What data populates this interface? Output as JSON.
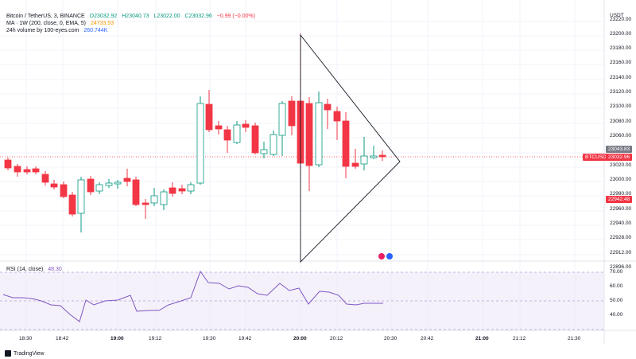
{
  "legend": {
    "symbol": "Bitcoin / TetherUS, 3, BINANCE",
    "open": "O23032.92",
    "high": "H23040.73",
    "low": "L23022.00",
    "close": "C23032.96",
    "change": "−0.99 (−0.00%)",
    "ma_label": "MA · 1W (200, close, 0, EMA, 5)",
    "ma_value": "24733.53",
    "volume_label": "24h volume by 100-eyes.com",
    "volume_value": "260.744K",
    "rsi_label": "RSI (14, close)",
    "rsi_value": "48.30"
  },
  "price_axis": {
    "currency": "USDT",
    "ticks": [
      "23220.00",
      "23200.00",
      "23180.00",
      "23160.00",
      "23140.00",
      "23120.00",
      "23100.00",
      "23080.00",
      "23060.00",
      "23040.00",
      "23020.00",
      "23000.00",
      "22980.00",
      "22960.00",
      "22940.00",
      "22928.00",
      "22912.00",
      "22896.00"
    ],
    "tag_high": "23043.83",
    "tag_symbol": "BTCUSDT",
    "tag_last": "23032.96",
    "tag_low": "22942.48"
  },
  "rsi_axis": {
    "ticks": [
      "70.00",
      "60.00",
      "50.00",
      "40.00"
    ]
  },
  "time_axis": {
    "labels": [
      "18:30",
      "18:42",
      "19:00",
      "19:12",
      "19:30",
      "19:42",
      "20:00",
      "20:12",
      "20:30",
      "20:42",
      "21:00",
      "21:12",
      "21:30"
    ]
  },
  "branding": {
    "name": "TradingView"
  },
  "colors": {
    "up": "#089981",
    "down": "#f23645",
    "rsi": "#7e57c2",
    "rsi_band": "#ede7f6",
    "grid": "#f0f3fa"
  }
}
